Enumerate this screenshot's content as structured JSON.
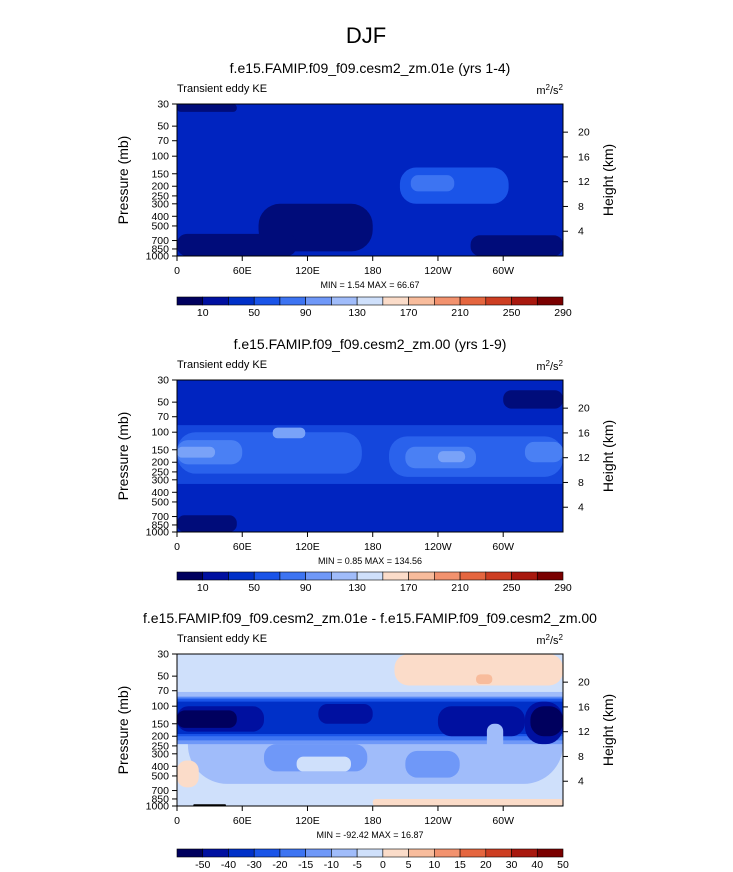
{
  "page_title": "DJF",
  "chart_data": [
    {
      "type": "contour",
      "title": "f.e15.FAMIP.f09_f09.cesm2_zm.01e (yrs 1-4)",
      "subtitle_left": "Transient eddy KE",
      "units": "m2/s2",
      "units_base": "m",
      "units_exp": "2",
      "units_sep": "/s",
      "units_exp2": "2",
      "ylabel": "Pressure (mb)",
      "ylabel_right": "Height (km)",
      "x_ticks": [
        "0",
        "60E",
        "120E",
        "180",
        "120W",
        "60W"
      ],
      "x_tick_lon": [
        0,
        60,
        120,
        180,
        240,
        300
      ],
      "xlim": [
        0,
        355
      ],
      "y_ticks": [
        "30",
        "50",
        "70",
        "100",
        "150",
        "200",
        "250",
        "300",
        "400",
        "500",
        "700",
        "850",
        "1000"
      ],
      "y_tick_p": [
        30,
        50,
        70,
        100,
        150,
        200,
        250,
        300,
        400,
        500,
        700,
        850,
        1000
      ],
      "ylim_mb": [
        30,
        1000
      ],
      "height_ticks": [
        "4",
        "8",
        "12",
        "16",
        "20"
      ],
      "height_tick_km": [
        4,
        8,
        12,
        16,
        20
      ],
      "stats": "MIN =   1.54  MAX =  66.67",
      "min": 1.54,
      "max": 66.67,
      "colorbar": {
        "labels": [
          "10",
          "50",
          "90",
          "130",
          "170",
          "210",
          "250",
          "290"
        ],
        "colors": [
          "#00005e",
          "#0010a0",
          "#0030c8",
          "#1a54e8",
          "#3d74f2",
          "#6f98f8",
          "#a0bcfa",
          "#cfe0fb",
          "#fbdcc9",
          "#f8bc9c",
          "#f2926e",
          "#e5663f",
          "#cd3e22",
          "#a8180e",
          "#7a0000"
        ]
      },
      "regions": [
        {
          "level": 1,
          "color": "#0024c0",
          "lon": [
            0,
            355
          ],
          "p": [
            30,
            1000
          ]
        },
        {
          "level": 3,
          "color": "#1a54e8",
          "lon": [
            205,
            305
          ],
          "p": [
            130,
            300
          ]
        },
        {
          "level": 4,
          "color": "#3d74f2",
          "lon": [
            215,
            255
          ],
          "p": [
            155,
            225
          ]
        },
        {
          "level": 0,
          "color": "#000c7a",
          "lon": [
            75,
            180
          ],
          "p": [
            300,
            900
          ]
        },
        {
          "level": 0,
          "color": "#000c7a",
          "lon": [
            0,
            110
          ],
          "p": [
            600,
            1000
          ]
        },
        {
          "level": 0,
          "color": "#000c7a",
          "lon": [
            270,
            355
          ],
          "p": [
            620,
            1000
          ]
        },
        {
          "level": 0,
          "color": "#000c7a",
          "lon": [
            0,
            55
          ],
          "p": [
            30,
            36
          ]
        }
      ]
    },
    {
      "type": "contour",
      "title": "f.e15.FAMIP.f09_f09.cesm2_zm.00 (yrs 1-9)",
      "subtitle_left": "Transient eddy KE",
      "units": "m2/s2",
      "units_base": "m",
      "units_exp": "2",
      "units_sep": "/s",
      "units_exp2": "2",
      "ylabel": "Pressure (mb)",
      "ylabel_right": "Height (km)",
      "x_ticks": [
        "0",
        "60E",
        "120E",
        "180",
        "120W",
        "60W"
      ],
      "x_tick_lon": [
        0,
        60,
        120,
        180,
        240,
        300
      ],
      "xlim": [
        0,
        355
      ],
      "y_ticks": [
        "30",
        "50",
        "70",
        "100",
        "150",
        "200",
        "250",
        "300",
        "400",
        "500",
        "700",
        "850",
        "1000"
      ],
      "y_tick_p": [
        30,
        50,
        70,
        100,
        150,
        200,
        250,
        300,
        400,
        500,
        700,
        850,
        1000
      ],
      "ylim_mb": [
        30,
        1000
      ],
      "height_ticks": [
        "4",
        "8",
        "12",
        "16",
        "20"
      ],
      "height_tick_km": [
        4,
        8,
        12,
        16,
        20
      ],
      "stats": "MIN =   0.85  MAX = 134.56",
      "min": 0.85,
      "max": 134.56,
      "colorbar": {
        "labels": [
          "10",
          "50",
          "90",
          "130",
          "170",
          "210",
          "250",
          "290"
        ],
        "colors": [
          "#00005e",
          "#0010a0",
          "#0030c8",
          "#1a54e8",
          "#3d74f2",
          "#6f98f8",
          "#a0bcfa",
          "#cfe0fb",
          "#fbdcc9",
          "#f8bc9c",
          "#f2926e",
          "#e5663f",
          "#cd3e22",
          "#a8180e",
          "#7a0000"
        ]
      },
      "regions": [
        {
          "level": 1,
          "color": "#0024c0",
          "lon": [
            0,
            355
          ],
          "p": [
            30,
            1000
          ]
        },
        {
          "level": 2,
          "color": "#1446dc",
          "lon": [
            0,
            355
          ],
          "p": [
            85,
            330
          ]
        },
        {
          "level": 3,
          "color": "#2a62ec",
          "lon": [
            0,
            170
          ],
          "p": [
            100,
            260
          ]
        },
        {
          "level": 3,
          "color": "#2a62ec",
          "lon": [
            195,
            355
          ],
          "p": [
            110,
            280
          ]
        },
        {
          "level": 4,
          "color": "#4a80f4",
          "lon": [
            0,
            60
          ],
          "p": [
            120,
            210
          ]
        },
        {
          "level": 4,
          "color": "#4a80f4",
          "lon": [
            210,
            275
          ],
          "p": [
            140,
            230
          ]
        },
        {
          "level": 4,
          "color": "#4a80f4",
          "lon": [
            320,
            355
          ],
          "p": [
            125,
            200
          ]
        },
        {
          "level": 5,
          "color": "#79a2f8",
          "lon": [
            0,
            35
          ],
          "p": [
            140,
            180
          ]
        },
        {
          "level": 5,
          "color": "#79a2f8",
          "lon": [
            240,
            265
          ],
          "p": [
            155,
            200
          ]
        },
        {
          "level": 5,
          "color": "#79a2f8",
          "lon": [
            88,
            118
          ],
          "p": [
            90,
            115
          ]
        },
        {
          "level": 0,
          "color": "#000c7a",
          "lon": [
            300,
            355
          ],
          "p": [
            38,
            58
          ]
        },
        {
          "level": 0,
          "color": "#000c7a",
          "lon": [
            0,
            55
          ],
          "p": [
            680,
            1000
          ]
        }
      ]
    },
    {
      "type": "contour",
      "title": "f.e15.FAMIP.f09_f09.cesm2_zm.01e - f.e15.FAMIP.f09_f09.cesm2_zm.00",
      "subtitle_left": "Transient eddy KE",
      "units": "m2/s2",
      "units_base": "m",
      "units_exp": "2",
      "units_sep": "/s",
      "units_exp2": "2",
      "ylabel": "Pressure (mb)",
      "ylabel_right": "Height (km)",
      "x_ticks": [
        "0",
        "60E",
        "120E",
        "180",
        "120W",
        "60W"
      ],
      "x_tick_lon": [
        0,
        60,
        120,
        180,
        240,
        300
      ],
      "xlim": [
        0,
        355
      ],
      "y_ticks": [
        "30",
        "50",
        "70",
        "100",
        "150",
        "200",
        "250",
        "300",
        "400",
        "500",
        "700",
        "850",
        "1000"
      ],
      "y_tick_p": [
        30,
        50,
        70,
        100,
        150,
        200,
        250,
        300,
        400,
        500,
        700,
        850,
        1000
      ],
      "ylim_mb": [
        30,
        1000
      ],
      "height_ticks": [
        "4",
        "8",
        "12",
        "16",
        "20"
      ],
      "height_tick_km": [
        4,
        8,
        12,
        16,
        20
      ],
      "stats": "MIN = -92.42  MAX =  16.87",
      "min": -92.42,
      "max": 16.87,
      "colorbar": {
        "labels": [
          "-50",
          "-40",
          "-30",
          "-20",
          "-15",
          "-10",
          "-5",
          "0",
          "5",
          "10",
          "15",
          "20",
          "30",
          "40",
          "50"
        ],
        "colors": [
          "#00005e",
          "#0010a0",
          "#0030c8",
          "#1a54e8",
          "#3d74f2",
          "#6f98f8",
          "#a0bcfa",
          "#cfe0fb",
          "#fbdcc9",
          "#f8bc9c",
          "#f2926e",
          "#e5663f",
          "#cd3e22",
          "#a8180e",
          "#7a0000"
        ]
      },
      "regions": [
        {
          "level": 7,
          "color": "#cfe0fb",
          "lon": [
            0,
            355
          ],
          "p": [
            30,
            1000
          ]
        },
        {
          "level": 8,
          "color": "#fbdcc9",
          "lon": [
            200,
            355
          ],
          "p": [
            30,
            62
          ]
        },
        {
          "level": 9,
          "color": "#f8bc9c",
          "lon": [
            275,
            290
          ],
          "p": [
            48,
            60
          ]
        },
        {
          "level": 6,
          "color": "#a0bcfa",
          "lon": [
            0,
            355
          ],
          "p": [
            72,
            80
          ]
        },
        {
          "level": 6,
          "color": "#a0bcfa",
          "lon": [
            10,
            355
          ],
          "p": [
            80,
            600
          ]
        },
        {
          "level": 5,
          "color": "#6f98f8",
          "lon": [
            0,
            355
          ],
          "p": [
            80,
            240
          ]
        },
        {
          "level": 4,
          "color": "#3d74f2",
          "lon": [
            0,
            355
          ],
          "p": [
            82,
            220
          ]
        },
        {
          "level": 3,
          "color": "#1a54e8",
          "lon": [
            0,
            355
          ],
          "p": [
            85,
            200
          ]
        },
        {
          "level": 2,
          "color": "#0030c8",
          "lon": [
            0,
            355
          ],
          "p": [
            90,
            190
          ]
        },
        {
          "level": 1,
          "color": "#0010a0",
          "lon": [
            0,
            80
          ],
          "p": [
            100,
            180
          ]
        },
        {
          "level": 1,
          "color": "#0010a0",
          "lon": [
            130,
            180
          ],
          "p": [
            95,
            150
          ]
        },
        {
          "level": 1,
          "color": "#0010a0",
          "lon": [
            240,
            320
          ],
          "p": [
            100,
            200
          ]
        },
        {
          "level": 1,
          "color": "#0010a0",
          "lon": [
            320,
            355
          ],
          "p": [
            90,
            240
          ]
        },
        {
          "level": 0,
          "color": "#00005e",
          "lon": [
            0,
            55
          ],
          "p": [
            110,
            165
          ]
        },
        {
          "level": 0,
          "color": "#00005e",
          "lon": [
            325,
            355
          ],
          "p": [
            100,
            200
          ]
        },
        {
          "level": 5,
          "color": "#6f98f8",
          "lon": [
            210,
            260
          ],
          "p": [
            280,
            520
          ]
        },
        {
          "level": 5,
          "color": "#6f98f8",
          "lon": [
            80,
            175
          ],
          "p": [
            240,
            450
          ]
        },
        {
          "level": 6,
          "color": "#a0bcfa",
          "lon": [
            285,
            300
          ],
          "p": [
            150,
            300
          ]
        },
        {
          "level": 7,
          "color": "#cfe0fb",
          "lon": [
            110,
            160
          ],
          "p": [
            320,
            450
          ]
        },
        {
          "level": 8,
          "color": "#fbdcc9",
          "lon": [
            180,
            355
          ],
          "p": [
            850,
            1000
          ]
        },
        {
          "level": 8,
          "color": "#fbdcc9",
          "lon": [
            0,
            20
          ],
          "p": [
            350,
            650
          ]
        },
        {
          "level": 0,
          "color": "#000000",
          "lon": [
            15,
            45
          ],
          "p": [
            960,
            1000
          ]
        }
      ]
    }
  ]
}
